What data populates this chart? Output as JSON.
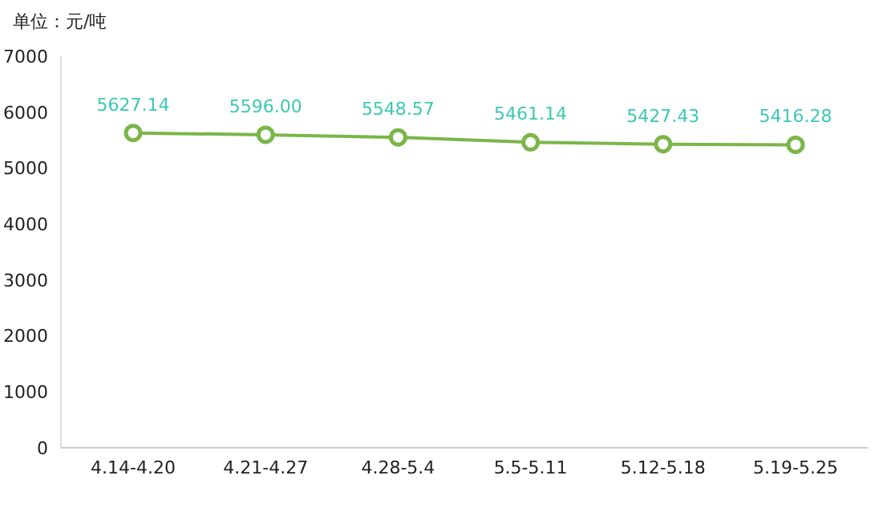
{
  "chart_data": {
    "type": "line",
    "ylabel": "单位：元/吨",
    "categories": [
      "4.14-4.20",
      "4.21-4.27",
      "4.28-5.4",
      "5.5-5.11",
      "5.12-5.18",
      "5.19-5.25"
    ],
    "series": [
      {
        "color": "#7ab648",
        "values": [
          5627.14,
          5596.0,
          5548.57,
          5461.14,
          5427.43,
          5416.28
        ],
        "value_labels": [
          "5627.14",
          "5596.00",
          "5548.57",
          "5461.14",
          "5427.43",
          "5416.28"
        ]
      }
    ],
    "ylim": [
      0,
      7000
    ],
    "yticks": [
      0,
      1000,
      2000,
      3000,
      4000,
      5000,
      6000,
      7000
    ],
    "grid": false,
    "legend": false,
    "marker": "circle",
    "line_style": "solid"
  }
}
